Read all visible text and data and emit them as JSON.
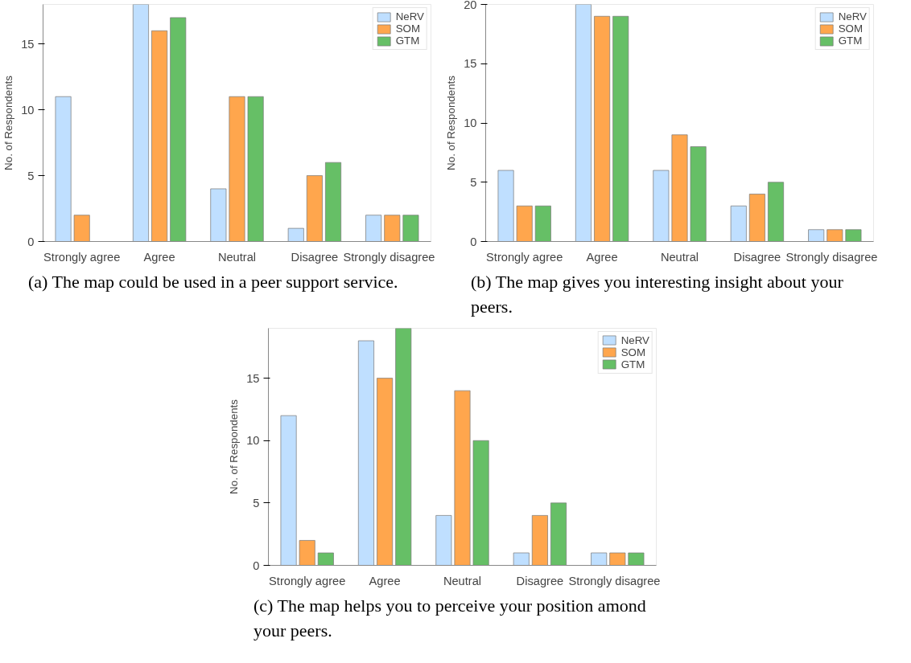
{
  "chart_data": [
    {
      "type": "bar",
      "ylabel": "No. of Respondents",
      "categories": [
        "Strongly agree",
        "Agree",
        "Neutral",
        "Disagree",
        "Strongly disagree"
      ],
      "series": [
        {
          "name": "NeRV",
          "color": "#bfdfff",
          "values": [
            11,
            18,
            4,
            1,
            2
          ]
        },
        {
          "name": "SOM",
          "color": "#ffa64d",
          "values": [
            2,
            16,
            11,
            5,
            2
          ]
        },
        {
          "name": "GTM",
          "color": "#66bf66",
          "values": [
            null,
            17,
            11,
            6,
            2
          ]
        }
      ],
      "ylim": [
        0,
        18
      ],
      "yticks": [
        0,
        5,
        10,
        15
      ],
      "legend": "top right",
      "grid": false,
      "annotations": [
        "(a) The map could be used in a peer support service."
      ]
    },
    {
      "type": "bar",
      "ylabel": "No. of Respondents",
      "categories": [
        "Strongly agree",
        "Agree",
        "Neutral",
        "Disagree",
        "Strongly disagree"
      ],
      "series": [
        {
          "name": "NeRV",
          "color": "#bfdfff",
          "values": [
            6,
            20,
            6,
            3,
            1
          ]
        },
        {
          "name": "SOM",
          "color": "#ffa64d",
          "values": [
            3,
            19,
            9,
            4,
            1
          ]
        },
        {
          "name": "GTM",
          "color": "#66bf66",
          "values": [
            3,
            19,
            8,
            5,
            1
          ]
        }
      ],
      "ylim": [
        0,
        20
      ],
      "yticks": [
        0,
        5,
        10,
        15,
        20
      ],
      "legend": "top right",
      "grid": false,
      "annotations": [
        "(b) The map gives you interesting insight about your peers."
      ]
    },
    {
      "type": "bar",
      "ylabel": "No. of Respondents",
      "categories": [
        "Strongly agree",
        "Agree",
        "Neutral",
        "Disagree",
        "Strongly disagree"
      ],
      "series": [
        {
          "name": "NeRV",
          "color": "#bfdfff",
          "values": [
            12,
            18,
            4,
            1,
            1
          ]
        },
        {
          "name": "SOM",
          "color": "#ffa64d",
          "values": [
            2,
            15,
            14,
            4,
            1
          ]
        },
        {
          "name": "GTM",
          "color": "#66bf66",
          "values": [
            1,
            19,
            10,
            5,
            1
          ]
        }
      ],
      "ylim": [
        0,
        19
      ],
      "yticks": [
        0,
        5,
        10,
        15
      ],
      "legend": "top right",
      "grid": false,
      "annotations": [
        "(c) The map helps you to perceive your position amond your peers."
      ]
    }
  ]
}
